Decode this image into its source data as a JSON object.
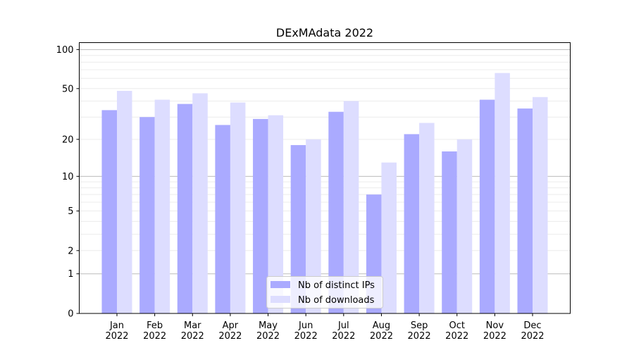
{
  "chart_data": {
    "type": "bar",
    "title": "DExMAdata 2022",
    "xlabel": "",
    "ylabel": "",
    "yscale": "log(y+1)",
    "ylim": [
      0,
      113
    ],
    "yticks": [
      0,
      1,
      2,
      5,
      10,
      20,
      50,
      100
    ],
    "categories": [
      "Jan\n2022",
      "Feb\n2022",
      "Mar\n2022",
      "Apr\n2022",
      "May\n2022",
      "Jun\n2022",
      "Jul\n2022",
      "Aug\n2022",
      "Sep\n2022",
      "Oct\n2022",
      "Nov\n2022",
      "Dec\n2022"
    ],
    "series": [
      {
        "name": "Nb of distinct IPs",
        "color": "#aaaaff",
        "values": [
          34,
          30,
          38,
          26,
          29,
          18,
          33,
          7,
          22,
          16,
          41,
          35
        ]
      },
      {
        "name": "Nb of downloads",
        "color": "#ddddff",
        "values": [
          48,
          41,
          46,
          39,
          31,
          20,
          40,
          13,
          27,
          20,
          66,
          43
        ]
      }
    ],
    "grid": true,
    "legend": "lower-center"
  }
}
